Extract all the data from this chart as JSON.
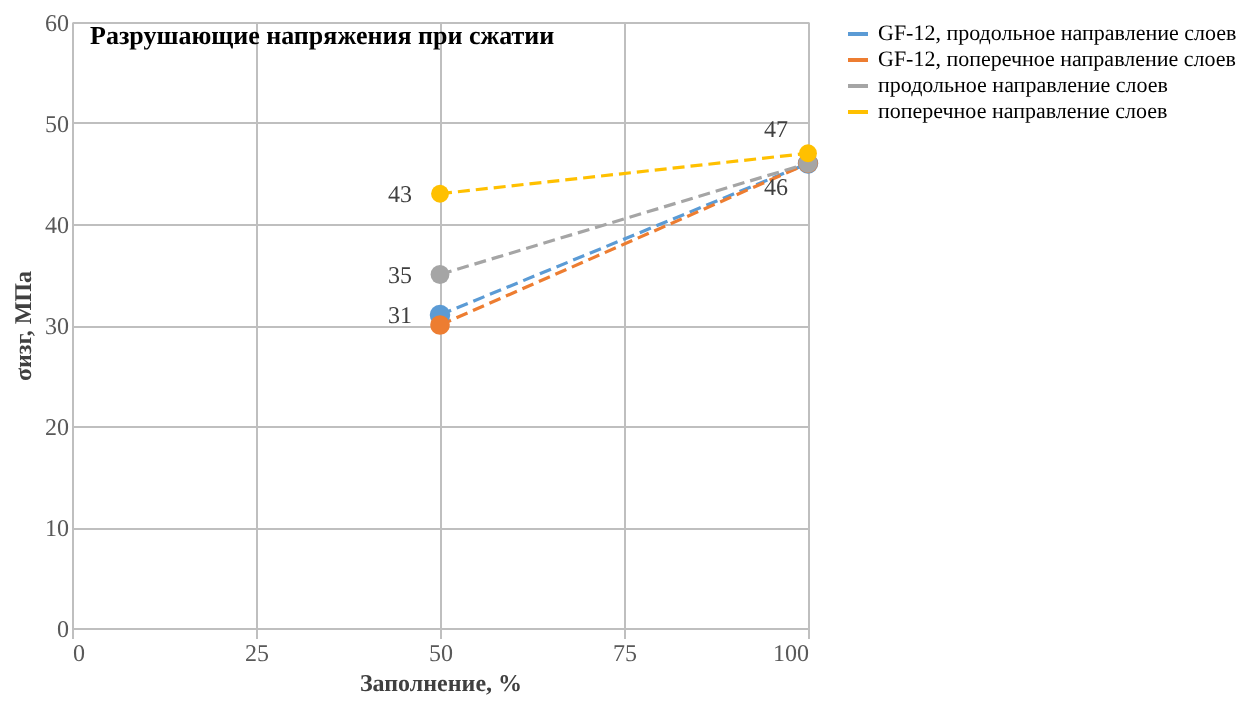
{
  "chart_data": {
    "type": "line",
    "title": "Разрушающие напряжения при сжатии",
    "xlabel": "Заполнение, %",
    "ylabel": "σизг, МПа",
    "x": [
      50,
      100
    ],
    "series": [
      {
        "name": "GF-12, продольное направление слоев",
        "color": "#5b9bd5",
        "values": [
          31,
          46
        ],
        "value_labels": [
          "31",
          null
        ]
      },
      {
        "name": "GF-12, поперечное направление слоев",
        "color": "#ed7d31",
        "values": [
          30,
          46
        ],
        "value_labels": [
          null,
          null
        ]
      },
      {
        "name": "продольное направление слоев",
        "color": "#a5a5a5",
        "values": [
          35,
          46
        ],
        "value_labels": [
          "35",
          "46"
        ]
      },
      {
        "name": "поперечное направление слоев",
        "color": "#ffc000",
        "values": [
          43,
          47
        ],
        "value_labels": [
          "43",
          "47"
        ]
      }
    ],
    "xlim": [
      0,
      100
    ],
    "xticks": [
      0,
      25,
      50,
      75,
      100
    ],
    "ylim": [
      0,
      60
    ],
    "yticks": [
      0,
      10,
      20,
      30,
      40,
      50,
      60
    ],
    "grid": true,
    "legend": "right",
    "marker": "circle",
    "line_style": "dashed"
  }
}
